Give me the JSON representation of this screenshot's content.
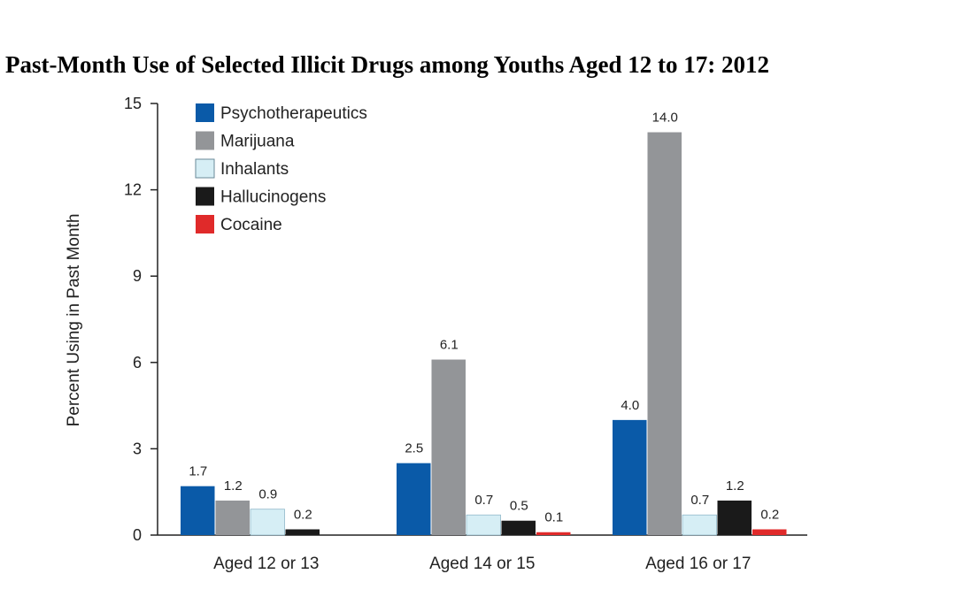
{
  "chart_data": {
    "type": "bar",
    "title": "Past-Month Use of Selected Illicit Drugs among Youths Aged 12 to 17: 2012",
    "xlabel": "",
    "ylabel": "Percent Using in Past Month",
    "ylim": [
      0,
      15
    ],
    "yticks": [
      0,
      3,
      6,
      9,
      12,
      15
    ],
    "grid": false,
    "legend_position": "top-left",
    "categories": [
      "Aged 12 or 13",
      "Aged 14 or 15",
      "Aged 16 or 17"
    ],
    "series": [
      {
        "name": "Psychotherapeutics",
        "color": "#0a5aa8",
        "values": [
          1.7,
          2.5,
          4.0
        ],
        "labels": [
          "1.7",
          "2.5",
          "4.0"
        ]
      },
      {
        "name": "Marijuana",
        "color": "#939598",
        "values": [
          1.2,
          6.1,
          14.0
        ],
        "labels": [
          "1.2",
          "6.1",
          "14.0"
        ]
      },
      {
        "name": "Inhalants",
        "color": "#d6eef5",
        "values": [
          0.9,
          0.7,
          0.7
        ],
        "labels": [
          "0.9",
          "0.7",
          "0.7"
        ]
      },
      {
        "name": "Hallucinogens",
        "color": "#1a1a1a",
        "values": [
          0.2,
          0.5,
          1.2
        ],
        "labels": [
          "0.2",
          "0.5",
          "1.2"
        ]
      },
      {
        "name": "Cocaine",
        "color": "#e02a2a",
        "values": [
          0.0,
          0.1,
          0.2
        ],
        "labels": [
          "",
          "0.1",
          "0.2"
        ]
      }
    ]
  }
}
